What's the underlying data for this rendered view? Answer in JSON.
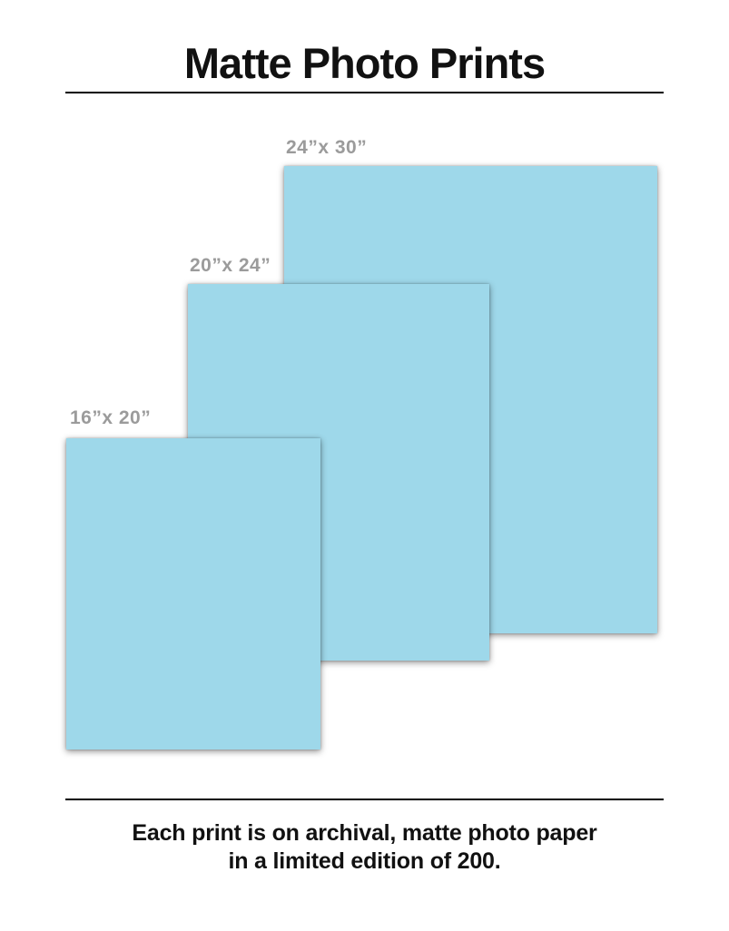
{
  "header": {
    "title": "Matte Photo Prints"
  },
  "prints": [
    {
      "id": "24x30",
      "label": "24”x 30”",
      "width_in": 24,
      "height_in": 30
    },
    {
      "id": "20x24",
      "label": "20”x 24”",
      "width_in": 20,
      "height_in": 24
    },
    {
      "id": "16x20",
      "label": "16”x 20”",
      "width_in": 16,
      "height_in": 20
    }
  ],
  "footer": {
    "line1": "Each print is on archival, matte photo paper",
    "line2": "in a limited edition of 200."
  },
  "colors": {
    "print_fill": "#9ED8EA",
    "label_gray": "#9B9B9B",
    "text_black": "#111111",
    "rule_black": "#000000"
  }
}
